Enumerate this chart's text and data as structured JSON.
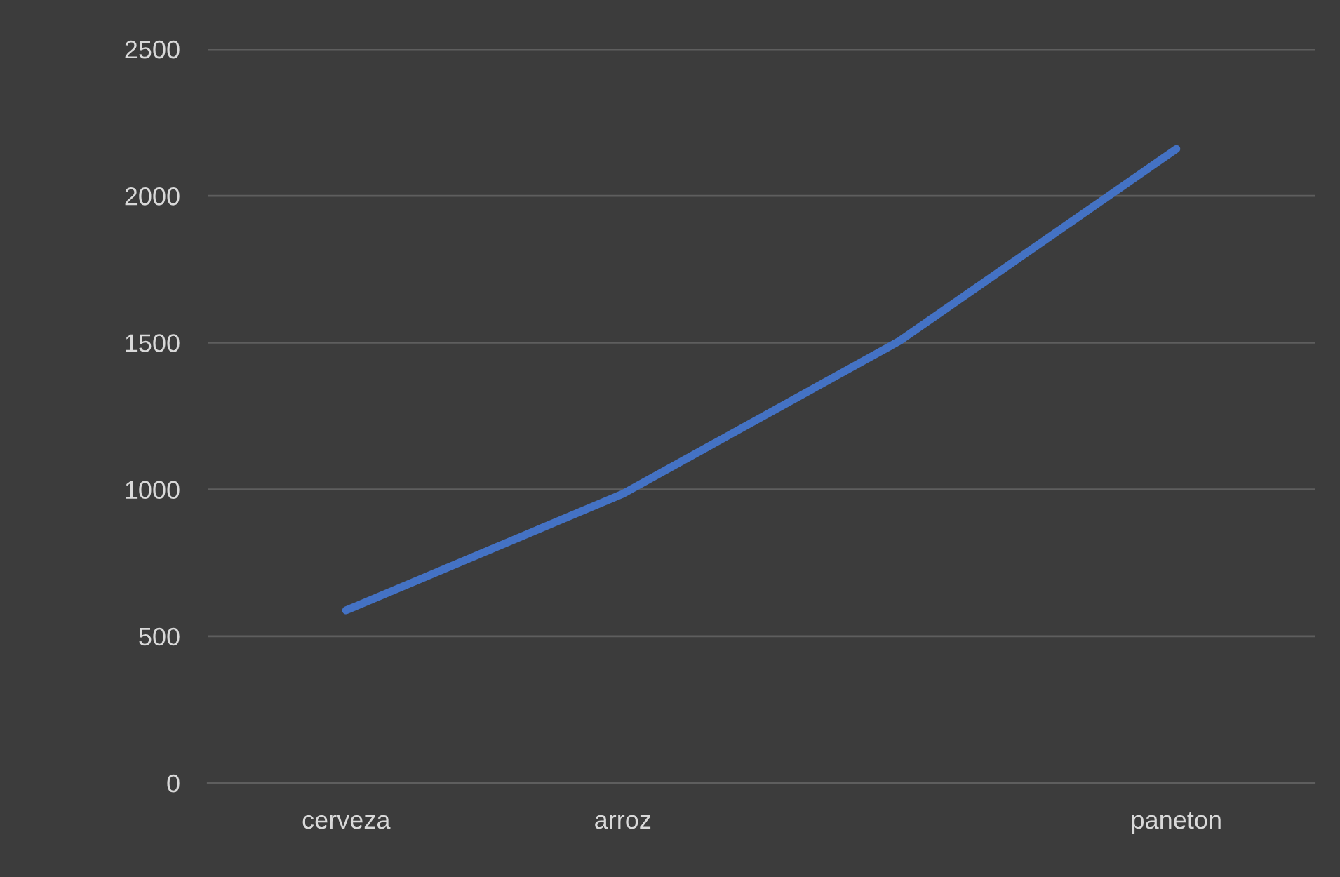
{
  "chart_data": {
    "type": "line",
    "categories": [
      "cerveza",
      "arroz",
      null,
      "paneton"
    ],
    "series": [
      {
        "color": "#4472c4",
        "values": [
          588,
          985,
          1506,
          2160
        ]
      }
    ],
    "ylim": [
      0,
      2500
    ],
    "yticks": [
      0,
      500,
      1000,
      1500,
      2000,
      2500
    ],
    "grid": "y",
    "marker": "none",
    "line_style": "solid"
  }
}
